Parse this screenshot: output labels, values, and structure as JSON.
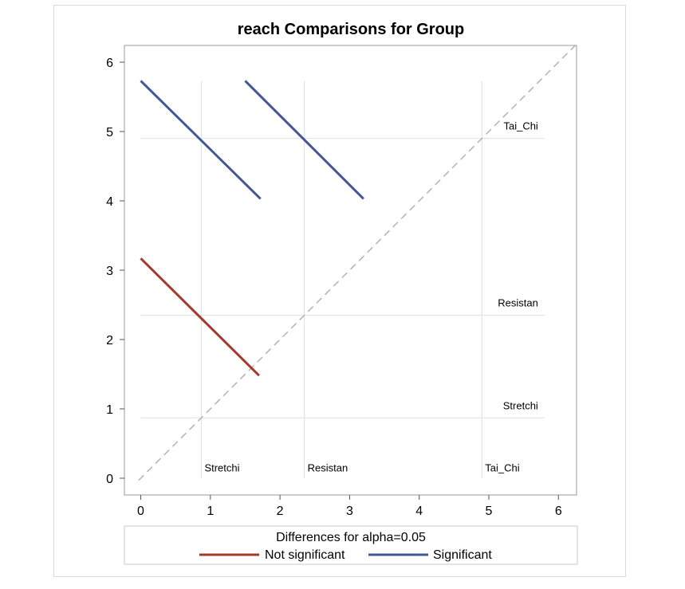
{
  "chart_data": {
    "type": "line",
    "title": "reach Comparisons for Group",
    "xlabel": "",
    "ylabel": "",
    "xlim": [
      -0.2,
      6.3
    ],
    "ylim": [
      -0.25,
      6.25
    ],
    "xticks": [
      0,
      1,
      2,
      3,
      4,
      5,
      6
    ],
    "yticks": [
      0,
      1,
      2,
      3,
      4,
      5,
      6
    ],
    "reference_lines": {
      "vertical": [
        0.87,
        2.35,
        4.9
      ],
      "horizontal": [
        0.87,
        2.35,
        4.9
      ],
      "diagonal": "y = x (dashed)"
    },
    "groups": [
      {
        "name": "Stretchi",
        "value": 0.87
      },
      {
        "name": "Resistan",
        "value": 2.35
      },
      {
        "name": "Tai_Chi",
        "value": 4.9
      }
    ],
    "series": [
      {
        "name": "Not significant",
        "color": "#a23a2e",
        "segments": [
          {
            "x": [
              0,
              1.7
            ],
            "y": [
              3.17,
              1.48
            ]
          }
        ]
      },
      {
        "name": "Significant",
        "color": "#445694",
        "segments": [
          {
            "x": [
              0,
              1.72
            ],
            "y": [
              5.73,
              4.03
            ]
          },
          {
            "x": [
              1.5,
              3.2
            ],
            "y": [
              5.73,
              4.03
            ]
          }
        ]
      }
    ],
    "legend": {
      "title": "Differences for alpha=0.05",
      "placement": "bottom"
    }
  }
}
